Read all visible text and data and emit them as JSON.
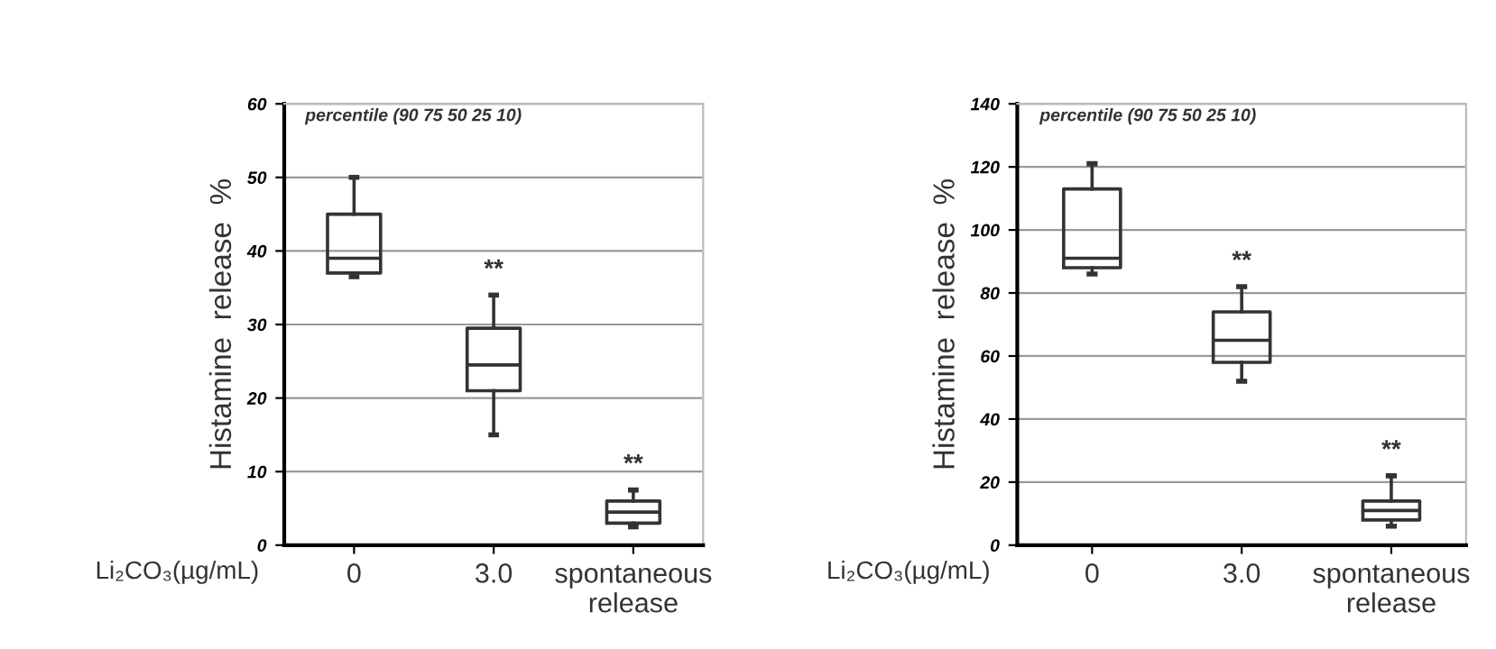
{
  "chart_data": [
    {
      "type": "box",
      "categories": [
        "0",
        "3.0",
        "spontaneous\nrelease"
      ],
      "ylabel": "Histamine  release  %",
      "xlabel": "Li₂CO₃(µg/mL)",
      "ylim": [
        0,
        60
      ],
      "yticks": [
        0,
        10,
        20,
        30,
        40,
        50,
        60
      ],
      "grid": "y",
      "boxes": [
        {
          "low": 36.5,
          "q1": 37,
          "median": 39,
          "q3": 45,
          "high": 50
        },
        {
          "low": 15,
          "q1": 21,
          "median": 24.5,
          "q3": 29.5,
          "high": 34
        },
        {
          "low": 2.5,
          "q1": 3,
          "median": 4.5,
          "q3": 6,
          "high": 7.5
        }
      ],
      "annotations": [
        "percentile (90 75 50 25 10)",
        "**",
        "**"
      ]
    },
    {
      "type": "box",
      "categories": [
        "0",
        "3.0",
        "spontaneous\nrelease"
      ],
      "ylabel": "Histamine  release  %",
      "xlabel": "Li₂CO₃(µg/mL)",
      "ylim": [
        0,
        140
      ],
      "yticks": [
        0,
        20,
        40,
        60,
        80,
        100,
        120,
        140
      ],
      "grid": "y",
      "boxes": [
        {
          "low": 86,
          "q1": 88,
          "median": 91,
          "q3": 113,
          "high": 121
        },
        {
          "low": 52,
          "q1": 58,
          "median": 65,
          "q3": 74,
          "high": 82
        },
        {
          "low": 6,
          "q1": 8,
          "median": 11,
          "q3": 14,
          "high": 22
        }
      ],
      "annotations": [
        "percentile (90 75 50 25 10)",
        "**",
        "**"
      ]
    }
  ]
}
